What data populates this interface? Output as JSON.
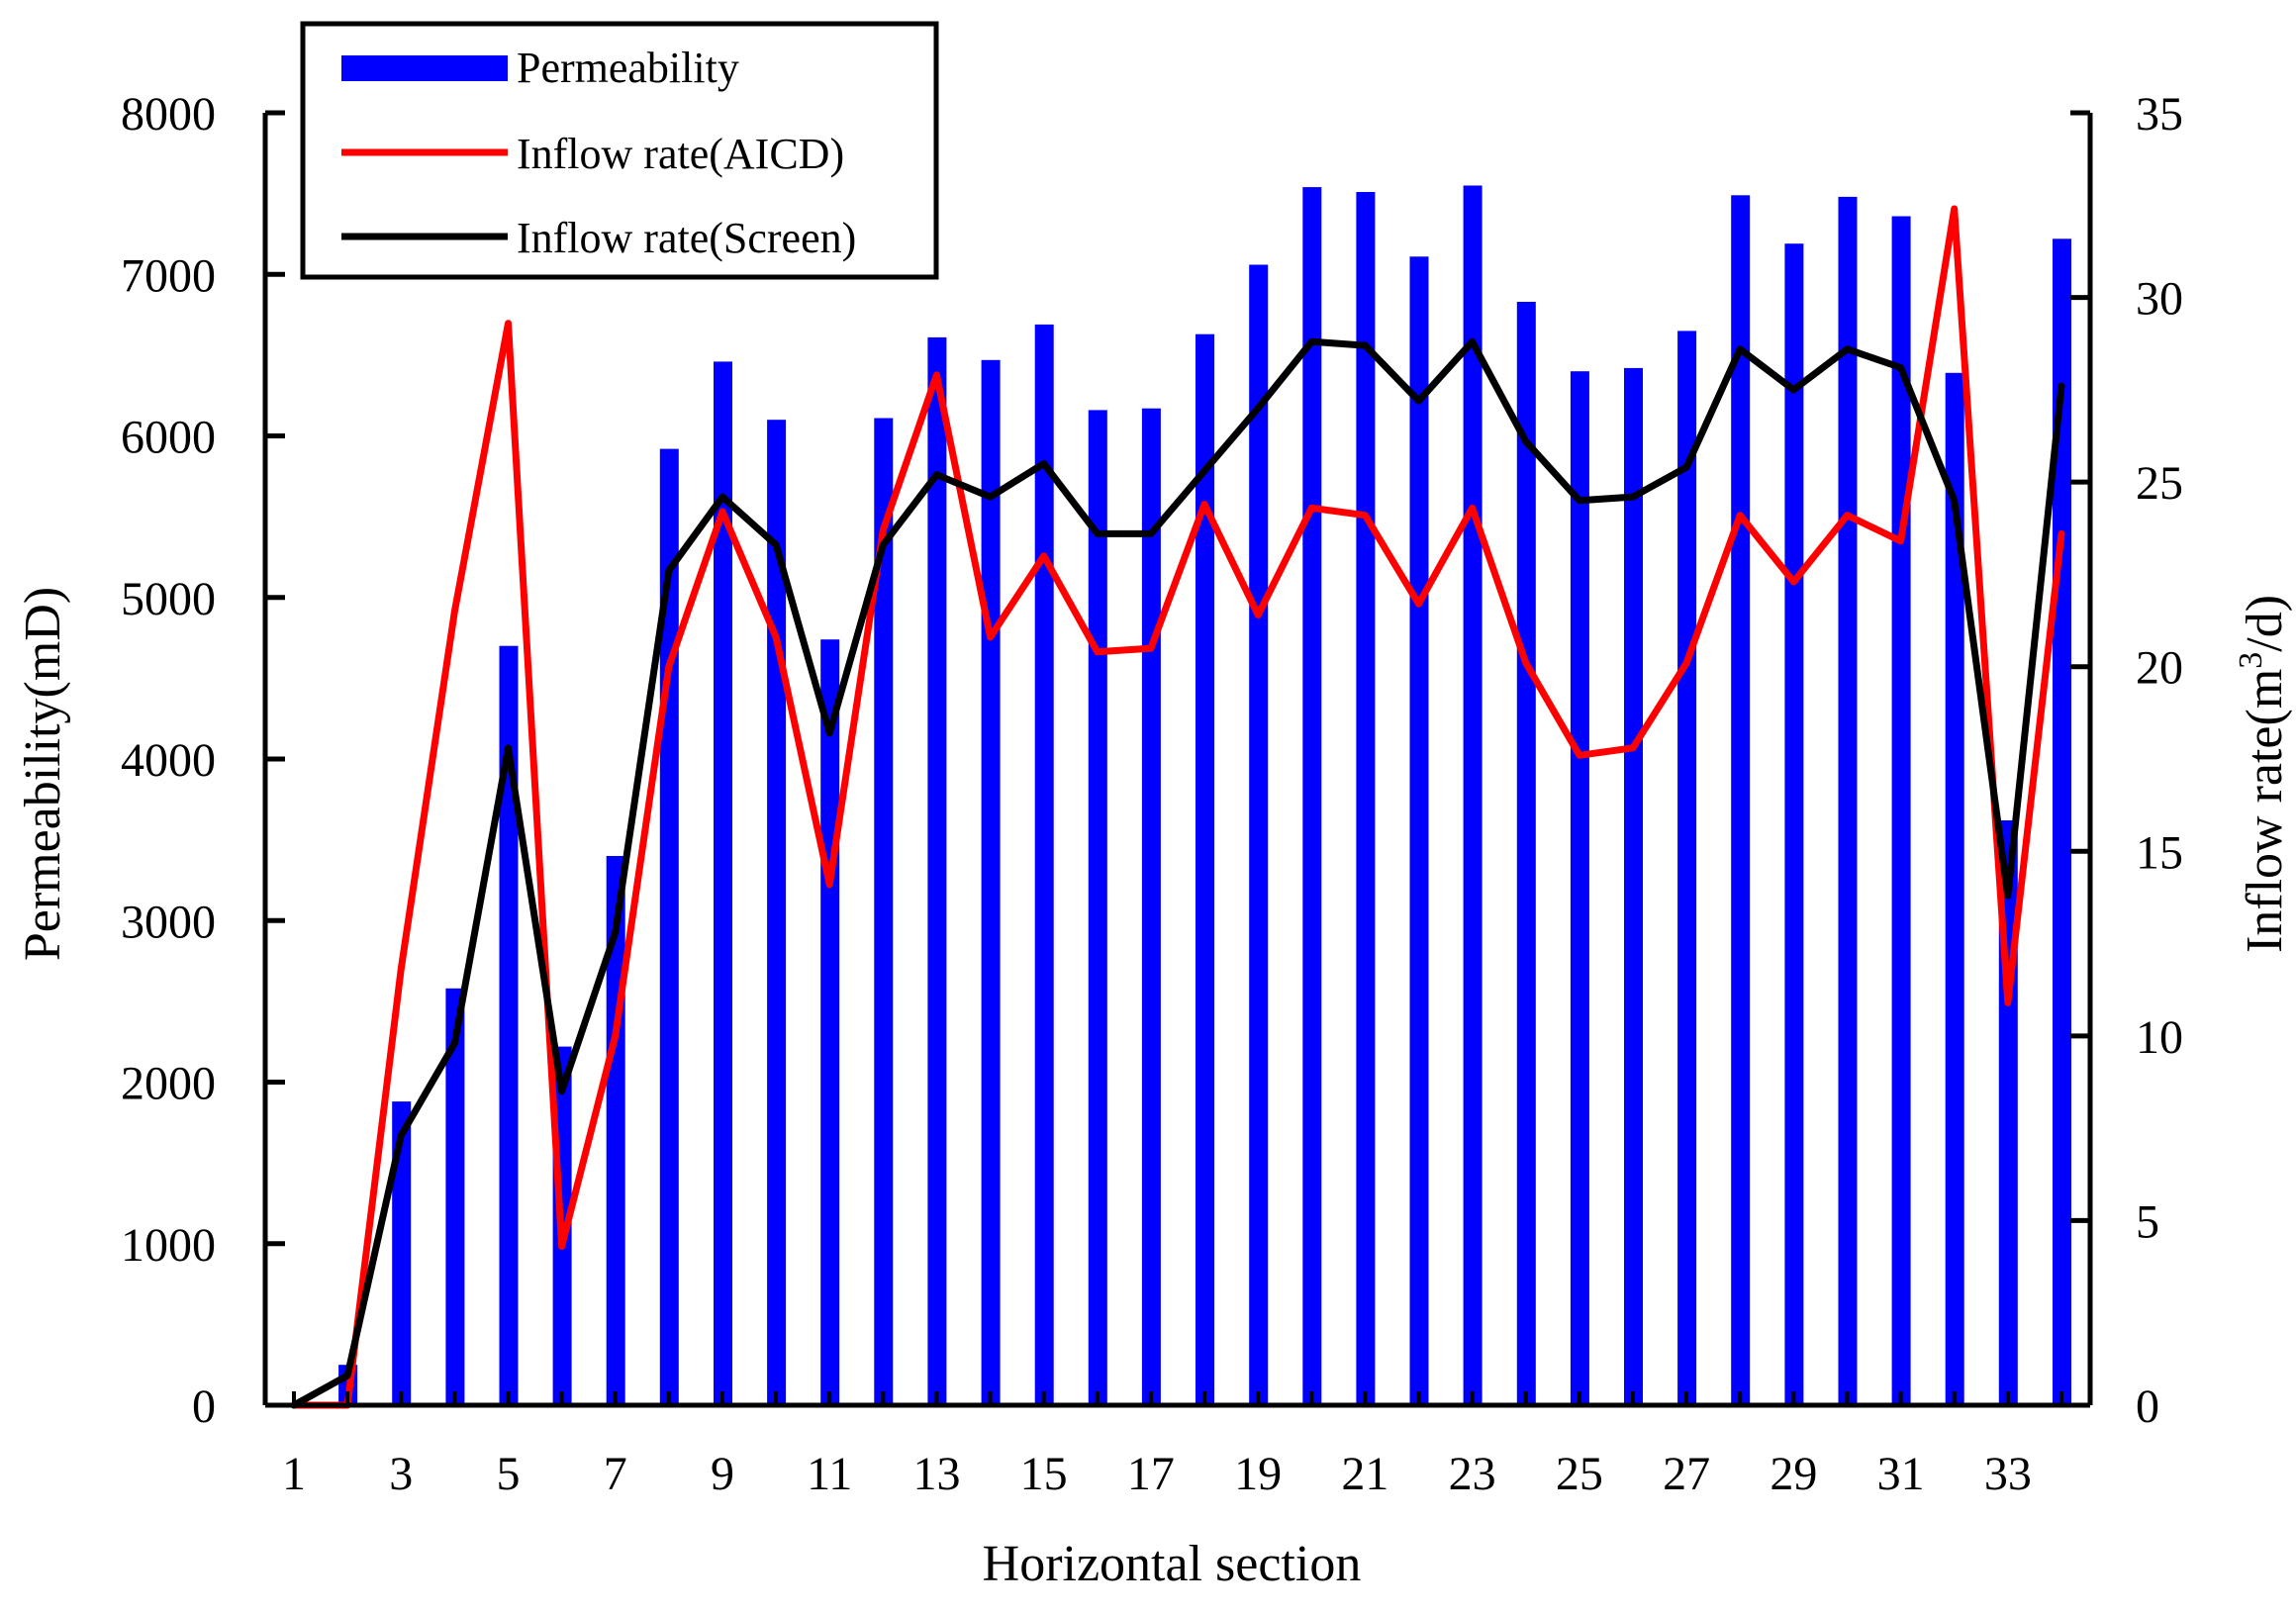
{
  "chart_data": {
    "type": "bar",
    "title": "",
    "xlabel": "Horizontal section",
    "ylabel": "Permeability(mD)",
    "y2label": "Inflow rate(m³/d)",
    "y2label_parts": {
      "pre": "Inflow rate(m",
      "sup": "3",
      "post": "/d)"
    },
    "ylim": [
      0,
      8000
    ],
    "y2lim": [
      0,
      35
    ],
    "y_ticks": [
      0,
      1000,
      2000,
      3000,
      4000,
      5000,
      6000,
      7000,
      8000
    ],
    "y2_ticks": [
      0,
      5,
      10,
      15,
      20,
      25,
      30,
      35
    ],
    "x_tick_labels": [
      1,
      3,
      5,
      7,
      9,
      11,
      13,
      15,
      17,
      19,
      21,
      23,
      25,
      27,
      29,
      31,
      33
    ],
    "categories": [
      1,
      2,
      3,
      4,
      5,
      6,
      7,
      8,
      9,
      10,
      11,
      12,
      13,
      14,
      15,
      16,
      17,
      18,
      19,
      20,
      21,
      22,
      23,
      24,
      25,
      26,
      27,
      28,
      29,
      30,
      31,
      32,
      33,
      34
    ],
    "legend_position": "top-left",
    "series": [
      {
        "name": "Permeability",
        "kind": "bar",
        "axis": "left",
        "color": "#0000ff",
        "values": [
          0,
          250,
          1880,
          2580,
          4700,
          2220,
          3400,
          5920,
          6460,
          6100,
          4740,
          6110,
          6610,
          6470,
          6690,
          6160,
          6170,
          6630,
          7060,
          7540,
          7510,
          7110,
          7550,
          6830,
          6400,
          6420,
          6650,
          7490,
          7190,
          7480,
          7360,
          6390,
          3620,
          7220
        ]
      },
      {
        "name": "Inflow rate(AICD)",
        "kind": "line",
        "axis": "right",
        "color": "#ff0000",
        "values": [
          0,
          0,
          11.8,
          21.5,
          29.3,
          4.3,
          10.0,
          20.0,
          24.2,
          20.8,
          14.1,
          23.7,
          27.9,
          20.8,
          23.0,
          20.4,
          20.5,
          24.4,
          21.4,
          24.3,
          24.1,
          21.7,
          24.3,
          20.1,
          17.6,
          17.8,
          20.1,
          24.1,
          22.3,
          24.1,
          23.4,
          32.4,
          10.9,
          23.6
        ]
      },
      {
        "name": "Inflow rate(Screen)",
        "kind": "line",
        "axis": "right",
        "color": "#000000",
        "values": [
          0,
          0.8,
          7.3,
          9.8,
          17.8,
          8.5,
          12.8,
          22.6,
          24.6,
          23.3,
          18.2,
          23.3,
          25.2,
          24.6,
          25.5,
          23.6,
          23.6,
          25.3,
          27.0,
          28.8,
          28.7,
          27.2,
          28.8,
          26.1,
          24.5,
          24.6,
          25.4,
          28.6,
          27.5,
          28.6,
          28.1,
          24.5,
          13.8,
          27.6
        ]
      }
    ]
  }
}
